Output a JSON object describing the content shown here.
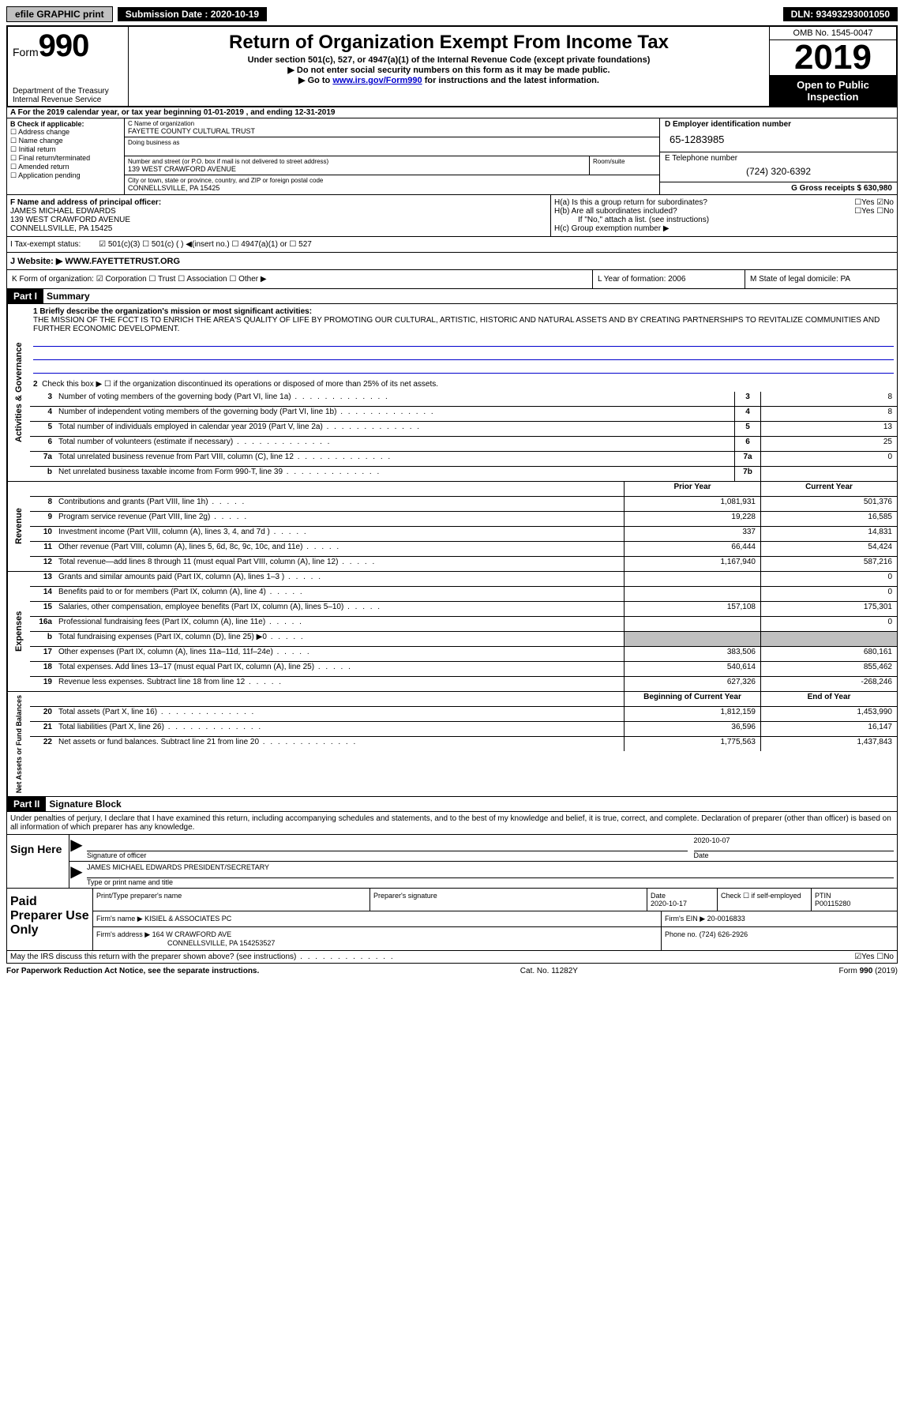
{
  "top": {
    "efile": "efile GRAPHIC print",
    "submission": "Submission Date : 2020-10-19",
    "dln": "DLN: 93493293001050"
  },
  "header": {
    "form_prefix": "Form",
    "form_num": "990",
    "title": "Return of Organization Exempt From Income Tax",
    "sub1": "Under section 501(c), 527, or 4947(a)(1) of the Internal Revenue Code (except private foundations)",
    "sub2": "▶ Do not enter social security numbers on this form as it may be made public.",
    "sub3_pre": "▶ Go to ",
    "sub3_link": "www.irs.gov/Form990",
    "sub3_post": " for instructions and the latest information.",
    "dept": "Department of the Treasury\nInternal Revenue Service",
    "omb": "OMB No. 1545-0047",
    "year": "2019",
    "open": "Open to Public Inspection"
  },
  "rowA": "A For the 2019 calendar year, or tax year beginning 01-01-2019   , and ending 12-31-2019",
  "colB": {
    "title": "B Check if applicable:",
    "items": [
      "☐ Address change",
      "☐ Name change",
      "☐ Initial return",
      "☐ Final return/terminated",
      "☐ Amended return",
      "☐ Application pending"
    ]
  },
  "colC": {
    "c_label": "C Name of organization",
    "org": "FAYETTE COUNTY CULTURAL TRUST",
    "dba_label": "Doing business as",
    "addr_label": "Number and street (or P.O. box if mail is not delivered to street address)",
    "room_label": "Room/suite",
    "addr": "139 WEST CRAWFORD AVENUE",
    "city_label": "City or town, state or province, country, and ZIP or foreign postal code",
    "city": "CONNELLSVILLE, PA  15425"
  },
  "colD": {
    "d_label": "D Employer identification number",
    "ein": "65-1283985",
    "e_label": "E Telephone number",
    "phone": "(724) 320-6392",
    "g_label": "G Gross receipts $",
    "gross": "630,980"
  },
  "sectionF": {
    "f_label": "F Name and address of principal officer:",
    "name": "JAMES MICHAEL EDWARDS",
    "addr1": "139 WEST CRAWFORD AVENUE",
    "addr2": "CONNELLSVILLE, PA  15425",
    "ha": "H(a)  Is this a group return for subordinates?",
    "ha_ans": "☐Yes ☑No",
    "hb": "H(b)  Are all subordinates included?",
    "hb_ans": "☐Yes ☐No",
    "hb_note": "If \"No,\" attach a list. (see instructions)",
    "hc": "H(c)  Group exemption number ▶"
  },
  "taxExempt": {
    "label": "I    Tax-exempt status:",
    "opts": "☑ 501(c)(3)    ☐ 501(c) (  ) ◀(insert no.)    ☐ 4947(a)(1) or   ☐ 527"
  },
  "website": {
    "label": "J   Website: ▶",
    "value": "WWW.FAYETTETRUST.ORG"
  },
  "rowK": {
    "k": "K Form of organization:  ☑ Corporation  ☐ Trust  ☐ Association  ☐ Other ▶",
    "l": "L Year of formation: 2006",
    "m": "M State of legal domicile: PA"
  },
  "part1": {
    "header": "Part I",
    "title": "Summary",
    "mission_label": "1  Briefly describe the organization's mission or most significant activities:",
    "mission": "THE MISSION OF THE FCCT IS TO ENRICH THE AREA'S QUALITY OF LIFE BY PROMOTING OUR CULTURAL, ARTISTIC, HISTORIC AND NATURAL ASSETS AND BY CREATING PARTNERSHIPS TO REVITALIZE COMMUNITIES AND FURTHER ECONOMIC DEVELOPMENT.",
    "line2": "Check this box ▶ ☐ if the organization discontinued its operations or disposed of more than 25% of its net assets."
  },
  "governance": {
    "side": "Activities & Governance",
    "rows": [
      {
        "n": "3",
        "d": "Number of voting members of the governing body (Part VI, line 1a)",
        "box": "3",
        "v": "8"
      },
      {
        "n": "4",
        "d": "Number of independent voting members of the governing body (Part VI, line 1b)",
        "box": "4",
        "v": "8"
      },
      {
        "n": "5",
        "d": "Total number of individuals employed in calendar year 2019 (Part V, line 2a)",
        "box": "5",
        "v": "13"
      },
      {
        "n": "6",
        "d": "Total number of volunteers (estimate if necessary)",
        "box": "6",
        "v": "25"
      },
      {
        "n": "7a",
        "d": "Total unrelated business revenue from Part VIII, column (C), line 12",
        "box": "7a",
        "v": "0"
      },
      {
        "n": "b",
        "d": "Net unrelated business taxable income from Form 990-T, line 39",
        "box": "7b",
        "v": ""
      }
    ]
  },
  "revenue": {
    "side": "Revenue",
    "header_prior": "Prior Year",
    "header_current": "Current Year",
    "rows": [
      {
        "n": "8",
        "d": "Contributions and grants (Part VIII, line 1h)",
        "p": "1,081,931",
        "c": "501,376"
      },
      {
        "n": "9",
        "d": "Program service revenue (Part VIII, line 2g)",
        "p": "19,228",
        "c": "16,585"
      },
      {
        "n": "10",
        "d": "Investment income (Part VIII, column (A), lines 3, 4, and 7d )",
        "p": "337",
        "c": "14,831"
      },
      {
        "n": "11",
        "d": "Other revenue (Part VIII, column (A), lines 5, 6d, 8c, 9c, 10c, and 11e)",
        "p": "66,444",
        "c": "54,424"
      },
      {
        "n": "12",
        "d": "Total revenue—add lines 8 through 11 (must equal Part VIII, column (A), line 12)",
        "p": "1,167,940",
        "c": "587,216"
      }
    ]
  },
  "expenses": {
    "side": "Expenses",
    "rows": [
      {
        "n": "13",
        "d": "Grants and similar amounts paid (Part IX, column (A), lines 1–3 )",
        "p": "",
        "c": "0"
      },
      {
        "n": "14",
        "d": "Benefits paid to or for members (Part IX, column (A), line 4)",
        "p": "",
        "c": "0"
      },
      {
        "n": "15",
        "d": "Salaries, other compensation, employee benefits (Part IX, column (A), lines 5–10)",
        "p": "157,108",
        "c": "175,301"
      },
      {
        "n": "16a",
        "d": "Professional fundraising fees (Part IX, column (A), line 11e)",
        "p": "",
        "c": "0"
      },
      {
        "n": "b",
        "d": "Total fundraising expenses (Part IX, column (D), line 25) ▶0",
        "p": "grey",
        "c": "grey"
      },
      {
        "n": "17",
        "d": "Other expenses (Part IX, column (A), lines 11a–11d, 11f–24e)",
        "p": "383,506",
        "c": "680,161"
      },
      {
        "n": "18",
        "d": "Total expenses. Add lines 13–17 (must equal Part IX, column (A), line 25)",
        "p": "540,614",
        "c": "855,462"
      },
      {
        "n": "19",
        "d": "Revenue less expenses. Subtract line 18 from line 12",
        "p": "627,326",
        "c": "-268,246"
      }
    ]
  },
  "netassets": {
    "side": "Net Assets or Fund Balances",
    "header_begin": "Beginning of Current Year",
    "header_end": "End of Year",
    "rows": [
      {
        "n": "20",
        "d": "Total assets (Part X, line 16)",
        "p": "1,812,159",
        "c": "1,453,990"
      },
      {
        "n": "21",
        "d": "Total liabilities (Part X, line 26)",
        "p": "36,596",
        "c": "16,147"
      },
      {
        "n": "22",
        "d": "Net assets or fund balances. Subtract line 21 from line 20",
        "p": "1,775,563",
        "c": "1,437,843"
      }
    ]
  },
  "part2": {
    "header": "Part II",
    "title": "Signature Block",
    "penalty": "Under penalties of perjury, I declare that I have examined this return, including accompanying schedules and statements, and to the best of my knowledge and belief, it is true, correct, and complete. Declaration of preparer (other than officer) is based on all information of which preparer has any knowledge."
  },
  "sign": {
    "label": "Sign Here",
    "sig_label": "Signature of officer",
    "date_label": "Date",
    "date": "2020-10-07",
    "name": "JAMES MICHAEL EDWARDS  PRESIDENT/SECRETARY",
    "name_label": "Type or print name and title"
  },
  "paid": {
    "label": "Paid Preparer Use Only",
    "print_label": "Print/Type preparer's name",
    "sig_label": "Preparer's signature",
    "date_label": "Date",
    "date": "2020-10-17",
    "check_label": "Check ☐ if self-employed",
    "ptin_label": "PTIN",
    "ptin": "P00115280",
    "firm_label": "Firm's name    ▶",
    "firm": "KISIEL & ASSOCIATES PC",
    "ein_label": "Firm's EIN ▶",
    "ein": "20-0016833",
    "addr_label": "Firm's address ▶",
    "addr1": "164 W CRAWFORD AVE",
    "addr2": "CONNELLSVILLE, PA  154253527",
    "phone_label": "Phone no.",
    "phone": "(724) 626-2926",
    "discuss": "May the IRS discuss this return with the preparer shown above? (see instructions)",
    "discuss_ans": "☑Yes  ☐No"
  },
  "footer": {
    "left": "For Paperwork Reduction Act Notice, see the separate instructions.",
    "center": "Cat. No. 11282Y",
    "right": "Form 990 (2019)"
  }
}
